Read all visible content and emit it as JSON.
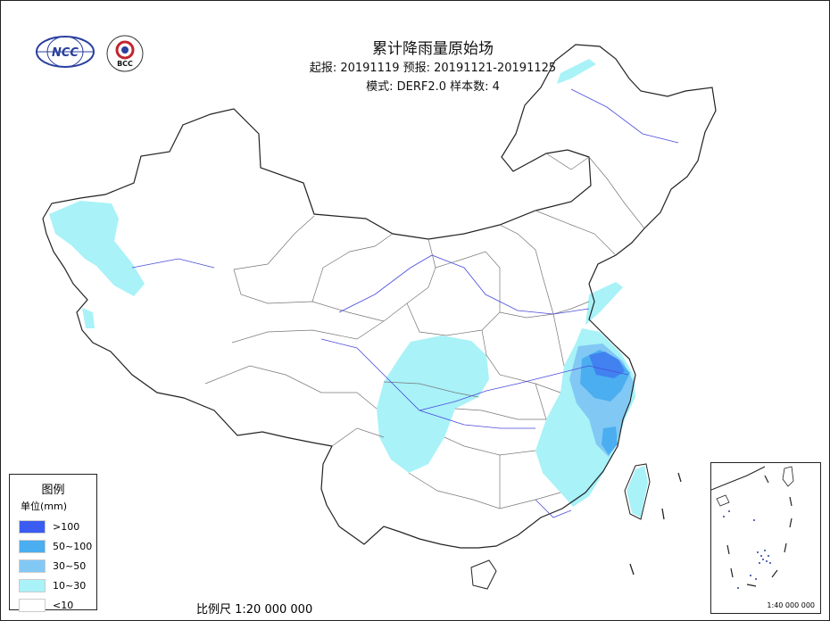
{
  "title": "累计降雨量原始场",
  "issue_line": "起报: 20191119 预报: 20191121-20191125",
  "model_line": "模式: DERF2.0 样本数: 4",
  "logos": {
    "left": "NCC",
    "right": "BCC"
  },
  "legend": {
    "title": "图例",
    "unit": "单位(mm)",
    "items": [
      {
        "label": ">100",
        "color": "#3a5cf0"
      },
      {
        "label": "50~100",
        "color": "#4aaef0"
      },
      {
        "label": "30~50",
        "color": "#82c8f5"
      },
      {
        "label": "10~30",
        "color": "#a8f2f8"
      },
      {
        "label": "<10",
        "color": "#ffffff"
      }
    ]
  },
  "scale": "比例尺 1:20 000 000",
  "inset_scale": "1:40 000 000",
  "colors": {
    "border": "#222222",
    "river": "#4a4adc",
    "province": "#888888"
  }
}
